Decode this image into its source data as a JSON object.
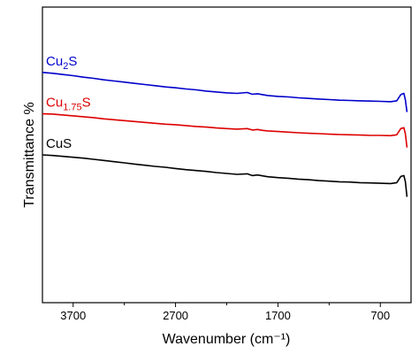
{
  "chart_data": {
    "type": "line",
    "title": "",
    "xlabel": "Wavenumber (cm⁻¹)",
    "ylabel": "Transmittance %",
    "x_reversed": true,
    "xlim": [
      4000,
      400
    ],
    "ylim": [
      0,
      100
    ],
    "y_ticks_shown": false,
    "x_ticks": [
      3700,
      2700,
      1700,
      700
    ],
    "x_tick_labels": [
      "3700",
      "2700",
      "1700",
      "700"
    ],
    "grid": false,
    "legend": "inline labels above each curve",
    "series": [
      {
        "name": "Cu₂S",
        "name_base": "Cu",
        "name_sub": "2",
        "name_tail": "S",
        "color": "#0000cc",
        "points": [
          [
            4000,
            77.9
          ],
          [
            3900,
            77.6
          ],
          [
            3800,
            77.2
          ],
          [
            3700,
            76.8
          ],
          [
            3600,
            76.3
          ],
          [
            3500,
            75.9
          ],
          [
            3400,
            75.4
          ],
          [
            3300,
            75.0
          ],
          [
            3200,
            74.6
          ],
          [
            3100,
            74.2
          ],
          [
            3000,
            73.8
          ],
          [
            2900,
            73.4
          ],
          [
            2800,
            73.0
          ],
          [
            2700,
            72.7
          ],
          [
            2600,
            72.3
          ],
          [
            2500,
            72.0
          ],
          [
            2400,
            71.6
          ],
          [
            2300,
            71.3
          ],
          [
            2200,
            71.0
          ],
          [
            2100,
            70.8
          ],
          [
            2000,
            71.1
          ],
          [
            1950,
            70.5
          ],
          [
            1900,
            70.7
          ],
          [
            1850,
            70.4
          ],
          [
            1800,
            70.1
          ],
          [
            1700,
            69.8
          ],
          [
            1600,
            69.6
          ],
          [
            1500,
            69.3
          ],
          [
            1400,
            69.1
          ],
          [
            1300,
            68.9
          ],
          [
            1200,
            68.7
          ],
          [
            1100,
            68.5
          ],
          [
            1000,
            68.4
          ],
          [
            900,
            68.3
          ],
          [
            800,
            68.2
          ],
          [
            700,
            68.1
          ],
          [
            600,
            68.0
          ],
          [
            540,
            68.3
          ],
          [
            500,
            70.4
          ],
          [
            470,
            70.8
          ],
          [
            455,
            68.6
          ],
          [
            440,
            64.5
          ]
        ]
      },
      {
        "name": "Cu₁.₇₅S",
        "name_base": "Cu",
        "name_sub": "1.75",
        "name_tail": "S",
        "color": "#dd0000",
        "points": [
          [
            4000,
            63.9
          ],
          [
            3900,
            63.8
          ],
          [
            3800,
            63.5
          ],
          [
            3700,
            63.2
          ],
          [
            3600,
            62.9
          ],
          [
            3500,
            62.6
          ],
          [
            3400,
            62.2
          ],
          [
            3300,
            61.9
          ],
          [
            3200,
            61.6
          ],
          [
            3100,
            61.3
          ],
          [
            3000,
            61.0
          ],
          [
            2900,
            60.7
          ],
          [
            2800,
            60.4
          ],
          [
            2700,
            60.2
          ],
          [
            2600,
            59.9
          ],
          [
            2500,
            59.6
          ],
          [
            2400,
            59.4
          ],
          [
            2300,
            59.1
          ],
          [
            2200,
            58.9
          ],
          [
            2100,
            58.7
          ],
          [
            2000,
            58.9
          ],
          [
            1950,
            58.4
          ],
          [
            1900,
            58.6
          ],
          [
            1850,
            58.3
          ],
          [
            1800,
            58.1
          ],
          [
            1700,
            57.9
          ],
          [
            1600,
            57.7
          ],
          [
            1500,
            57.5
          ],
          [
            1400,
            57.3
          ],
          [
            1300,
            57.2
          ],
          [
            1200,
            57.0
          ],
          [
            1100,
            56.9
          ],
          [
            1000,
            56.8
          ],
          [
            900,
            56.7
          ],
          [
            800,
            56.6
          ],
          [
            700,
            56.6
          ],
          [
            600,
            56.5
          ],
          [
            540,
            56.8
          ],
          [
            500,
            58.9
          ],
          [
            470,
            59.2
          ],
          [
            455,
            57.1
          ],
          [
            440,
            52.5
          ]
        ]
      },
      {
        "name": "CuS",
        "name_base": "CuS",
        "name_sub": "",
        "name_tail": "",
        "color": "#000000",
        "points": [
          [
            4000,
            50.0
          ],
          [
            3900,
            49.8
          ],
          [
            3800,
            49.5
          ],
          [
            3700,
            49.2
          ],
          [
            3600,
            48.9
          ],
          [
            3500,
            48.5
          ],
          [
            3400,
            48.1
          ],
          [
            3300,
            47.7
          ],
          [
            3200,
            47.3
          ],
          [
            3100,
            46.9
          ],
          [
            3000,
            46.5
          ],
          [
            2900,
            46.1
          ],
          [
            2800,
            45.8
          ],
          [
            2700,
            45.4
          ],
          [
            2600,
            45.0
          ],
          [
            2500,
            44.7
          ],
          [
            2400,
            44.4
          ],
          [
            2300,
            44.0
          ],
          [
            2200,
            43.7
          ],
          [
            2100,
            43.4
          ],
          [
            2000,
            43.6
          ],
          [
            1950,
            43.0
          ],
          [
            1900,
            43.2
          ],
          [
            1850,
            42.9
          ],
          [
            1800,
            42.6
          ],
          [
            1700,
            42.3
          ],
          [
            1600,
            42.1
          ],
          [
            1500,
            41.8
          ],
          [
            1400,
            41.6
          ],
          [
            1300,
            41.3
          ],
          [
            1200,
            41.1
          ],
          [
            1100,
            40.9
          ],
          [
            1000,
            40.8
          ],
          [
            900,
            40.6
          ],
          [
            800,
            40.5
          ],
          [
            700,
            40.4
          ],
          [
            600,
            40.3
          ],
          [
            540,
            40.6
          ],
          [
            500,
            42.7
          ],
          [
            470,
            43.0
          ],
          [
            455,
            40.9
          ],
          [
            440,
            35.8
          ]
        ]
      }
    ]
  }
}
